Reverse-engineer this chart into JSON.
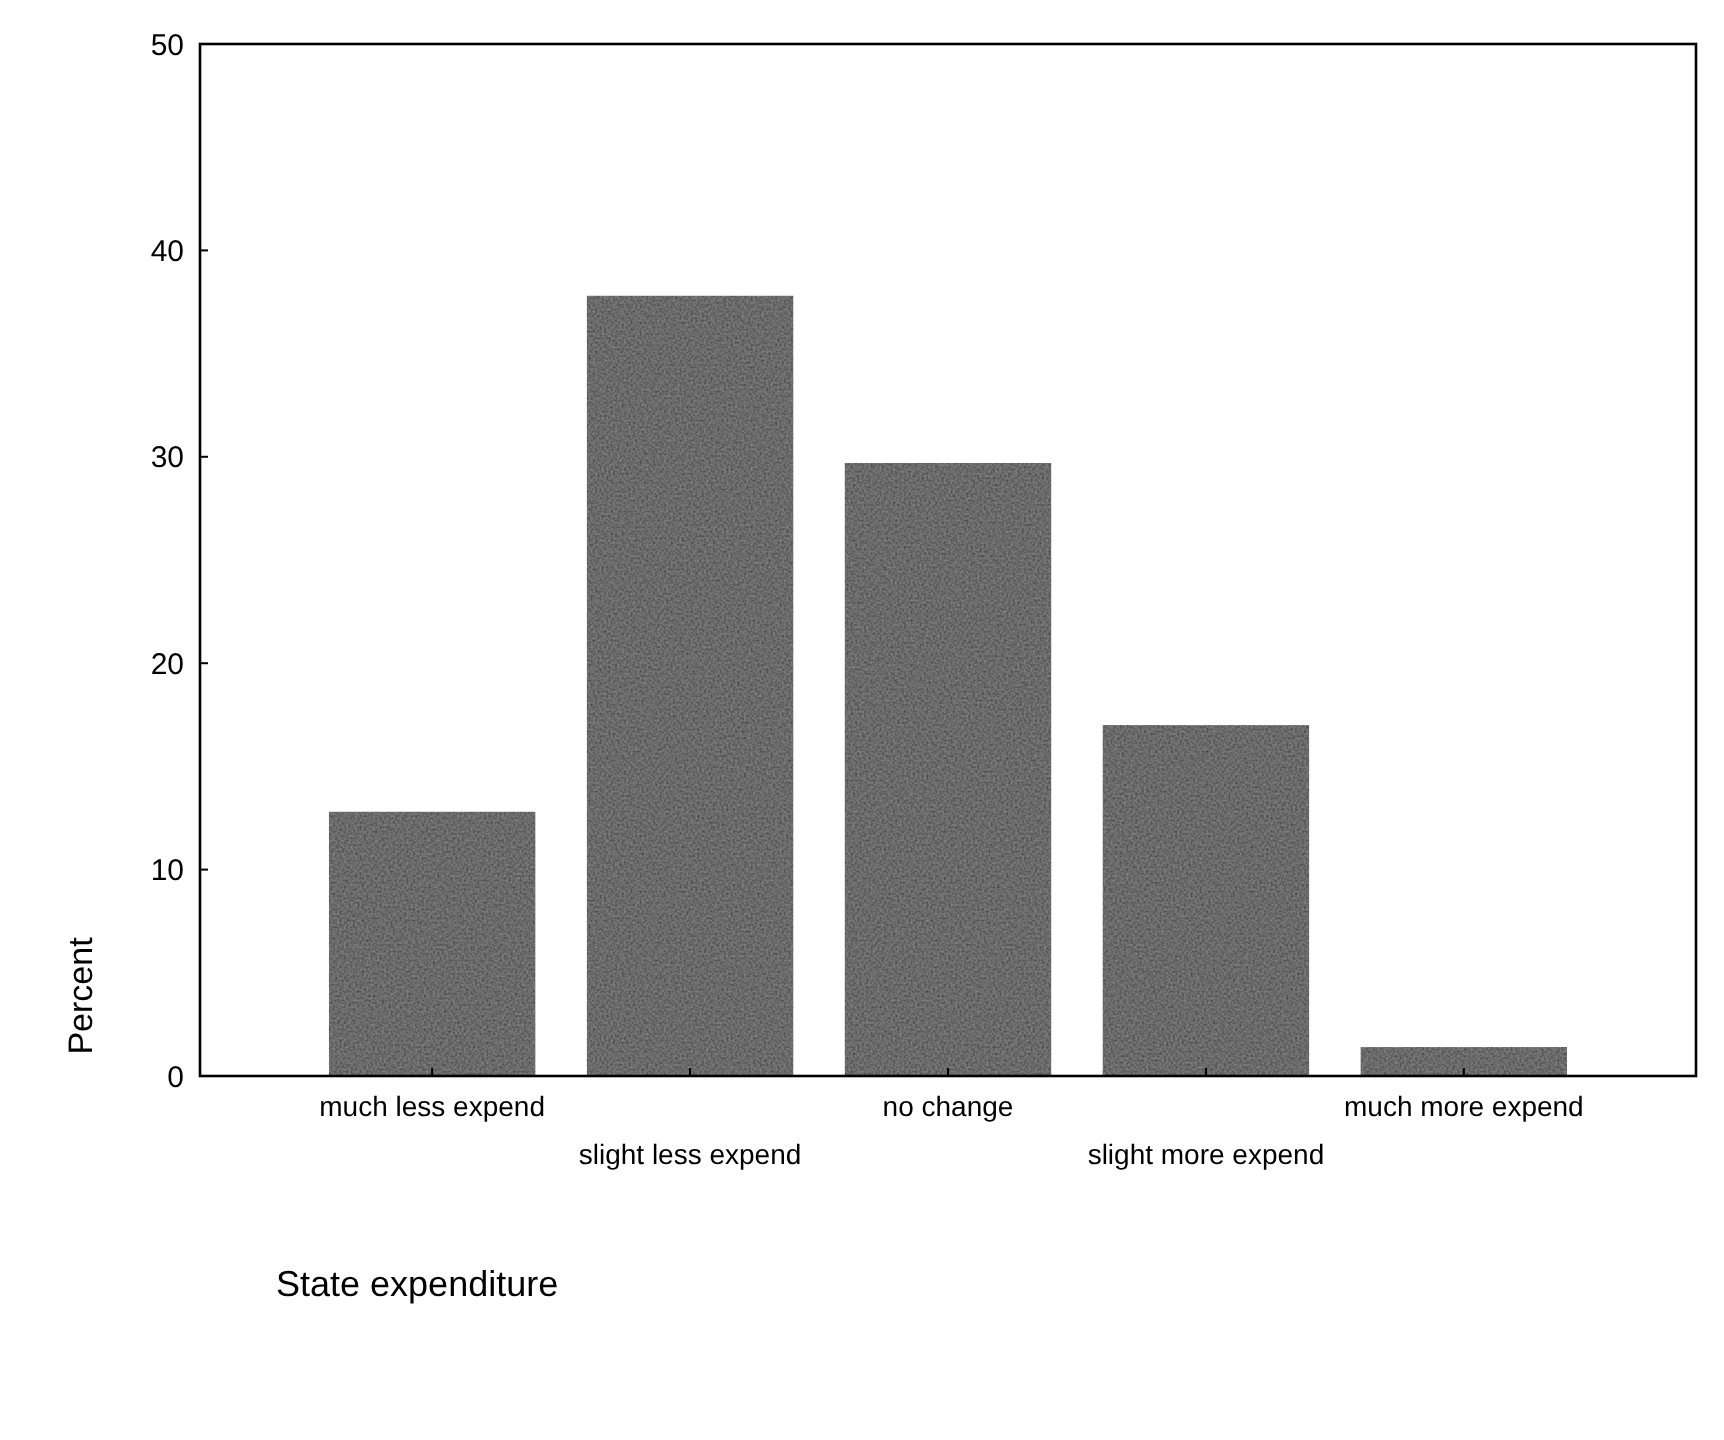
{
  "chart_data": {
    "type": "bar",
    "xlabel": "State expenditure",
    "ylabel": "Percent",
    "categories": [
      "much less expend",
      "slight less expend",
      "no change",
      "slight more expend",
      "much more expend"
    ],
    "values": [
      12.8,
      37.8,
      29.7,
      17.0,
      1.4
    ],
    "color": "#2b2b2b",
    "ylim": [
      0,
      50
    ],
    "yticks": [
      0,
      10,
      20,
      30,
      40,
      50
    ],
    "grid": false
  }
}
